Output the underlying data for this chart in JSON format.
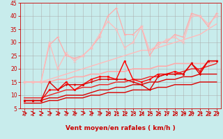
{
  "xlabel": "Vent moyen/en rafales ( km/h )",
  "xlim": [
    -0.5,
    23.5
  ],
  "ylim": [
    5,
    45
  ],
  "yticks": [
    5,
    10,
    15,
    20,
    25,
    30,
    35,
    40,
    45
  ],
  "xticks": [
    0,
    1,
    2,
    3,
    4,
    5,
    6,
    7,
    8,
    9,
    10,
    11,
    12,
    13,
    14,
    15,
    16,
    17,
    18,
    19,
    20,
    21,
    22,
    23
  ],
  "bg_color": "#c8ecec",
  "grid_color": "#aaaaaa",
  "lines": [
    {
      "x": [
        0,
        1,
        2,
        3,
        4,
        5,
        6,
        7,
        8,
        9,
        10,
        11,
        12,
        13,
        14,
        15,
        16,
        17,
        18,
        19,
        20,
        21,
        22,
        23
      ],
      "y": [
        7,
        7,
        7,
        8,
        8,
        9,
        9,
        9,
        10,
        10,
        11,
        11,
        11,
        12,
        12,
        12,
        13,
        13,
        14,
        14,
        14,
        15,
        15,
        15
      ],
      "color": "#dd0000",
      "lw": 1.0,
      "marker": "None",
      "ms": 0
    },
    {
      "x": [
        0,
        1,
        2,
        3,
        4,
        5,
        6,
        7,
        8,
        9,
        10,
        11,
        12,
        13,
        14,
        15,
        16,
        17,
        18,
        19,
        20,
        21,
        22,
        23
      ],
      "y": [
        8,
        8,
        8,
        9,
        9,
        10,
        10,
        10,
        11,
        12,
        12,
        13,
        13,
        14,
        14,
        15,
        15,
        16,
        16,
        17,
        17,
        18,
        18,
        18
      ],
      "color": "#dd0000",
      "lw": 1.0,
      "marker": "None",
      "ms": 0
    },
    {
      "x": [
        0,
        1,
        2,
        3,
        4,
        5,
        6,
        7,
        8,
        9,
        10,
        11,
        12,
        13,
        14,
        15,
        16,
        17,
        18,
        19,
        20,
        21,
        22,
        23
      ],
      "y": [
        9,
        9,
        9,
        10,
        11,
        12,
        12,
        13,
        13,
        14,
        14,
        15,
        15,
        16,
        16,
        17,
        17,
        18,
        18,
        19,
        20,
        20,
        21,
        22
      ],
      "color": "#ee2222",
      "lw": 1.0,
      "marker": "None",
      "ms": 0
    },
    {
      "x": [
        0,
        1,
        2,
        3,
        4,
        5,
        6,
        7,
        8,
        9,
        10,
        11,
        12,
        13,
        14,
        15,
        16,
        17,
        18,
        19,
        20,
        21,
        22,
        23
      ],
      "y": [
        15,
        15,
        15,
        15,
        16,
        16,
        17,
        17,
        18,
        18,
        19,
        19,
        19,
        20,
        20,
        20,
        21,
        21,
        22,
        22,
        22,
        22,
        22,
        23
      ],
      "color": "#ffaaaa",
      "lw": 1.2,
      "marker": "None",
      "ms": 0
    },
    {
      "x": [
        0,
        1,
        2,
        3,
        4,
        5,
        6,
        7,
        8,
        9,
        10,
        11,
        12,
        13,
        14,
        15,
        16,
        17,
        18,
        19,
        20,
        21,
        22,
        23
      ],
      "y": [
        15,
        15,
        15,
        16,
        17,
        18,
        19,
        20,
        21,
        22,
        23,
        24,
        25,
        26,
        27,
        27,
        28,
        29,
        30,
        31,
        32,
        33,
        35,
        37
      ],
      "color": "#ffbbbb",
      "lw": 1.0,
      "marker": "None",
      "ms": 0
    },
    {
      "x": [
        0,
        1,
        2,
        3,
        4,
        5,
        6,
        7,
        8,
        9,
        10,
        11,
        12,
        13,
        14,
        15,
        16,
        17,
        18,
        19,
        20,
        21,
        22,
        23
      ],
      "y": [
        8,
        8,
        8,
        12,
        12,
        15,
        12,
        14,
        16,
        17,
        17,
        16,
        23,
        16,
        15,
        16,
        18,
        18,
        19,
        18,
        22,
        19,
        23,
        23
      ],
      "color": "#ff0000",
      "lw": 1.0,
      "marker": "s",
      "ms": 2.0
    },
    {
      "x": [
        0,
        1,
        2,
        3,
        4,
        5,
        6,
        7,
        8,
        9,
        10,
        11,
        12,
        13,
        14,
        15,
        16,
        17,
        18,
        19,
        20,
        21,
        22,
        23
      ],
      "y": [
        8,
        8,
        8,
        15,
        12,
        14,
        14,
        14,
        15,
        16,
        16,
        16,
        16,
        15,
        14,
        12,
        17,
        18,
        18,
        18,
        22,
        18,
        23,
        23
      ],
      "color": "#dd0000",
      "lw": 1.0,
      "marker": "v",
      "ms": 2.0
    },
    {
      "x": [
        0,
        1,
        2,
        3,
        4,
        5,
        6,
        7,
        8,
        9,
        10,
        11,
        12,
        13,
        14,
        15,
        16,
        17,
        18,
        19,
        20,
        21,
        22,
        23
      ],
      "y": [
        15,
        15,
        15,
        29,
        32,
        25,
        24,
        25,
        28,
        32,
        40,
        43,
        33,
        33,
        36,
        25,
        30,
        30,
        33,
        32,
        41,
        40,
        36,
        41
      ],
      "color": "#ffaaaa",
      "lw": 0.9,
      "marker": "+",
      "ms": 3.0
    },
    {
      "x": [
        0,
        1,
        2,
        3,
        4,
        5,
        6,
        7,
        8,
        9,
        10,
        11,
        12,
        13,
        14,
        15,
        16,
        17,
        18,
        19,
        20,
        21,
        22,
        23
      ],
      "y": [
        15,
        15,
        15,
        30,
        20,
        26,
        23,
        25,
        28,
        33,
        38,
        35,
        28,
        30,
        36,
        27,
        29,
        31,
        32,
        30,
        40,
        40,
        37,
        40
      ],
      "color": "#ffbbbb",
      "lw": 0.9,
      "marker": "x",
      "ms": 2.5
    }
  ],
  "label_fontsize": 6.5,
  "tick_fontsize": 5.5
}
